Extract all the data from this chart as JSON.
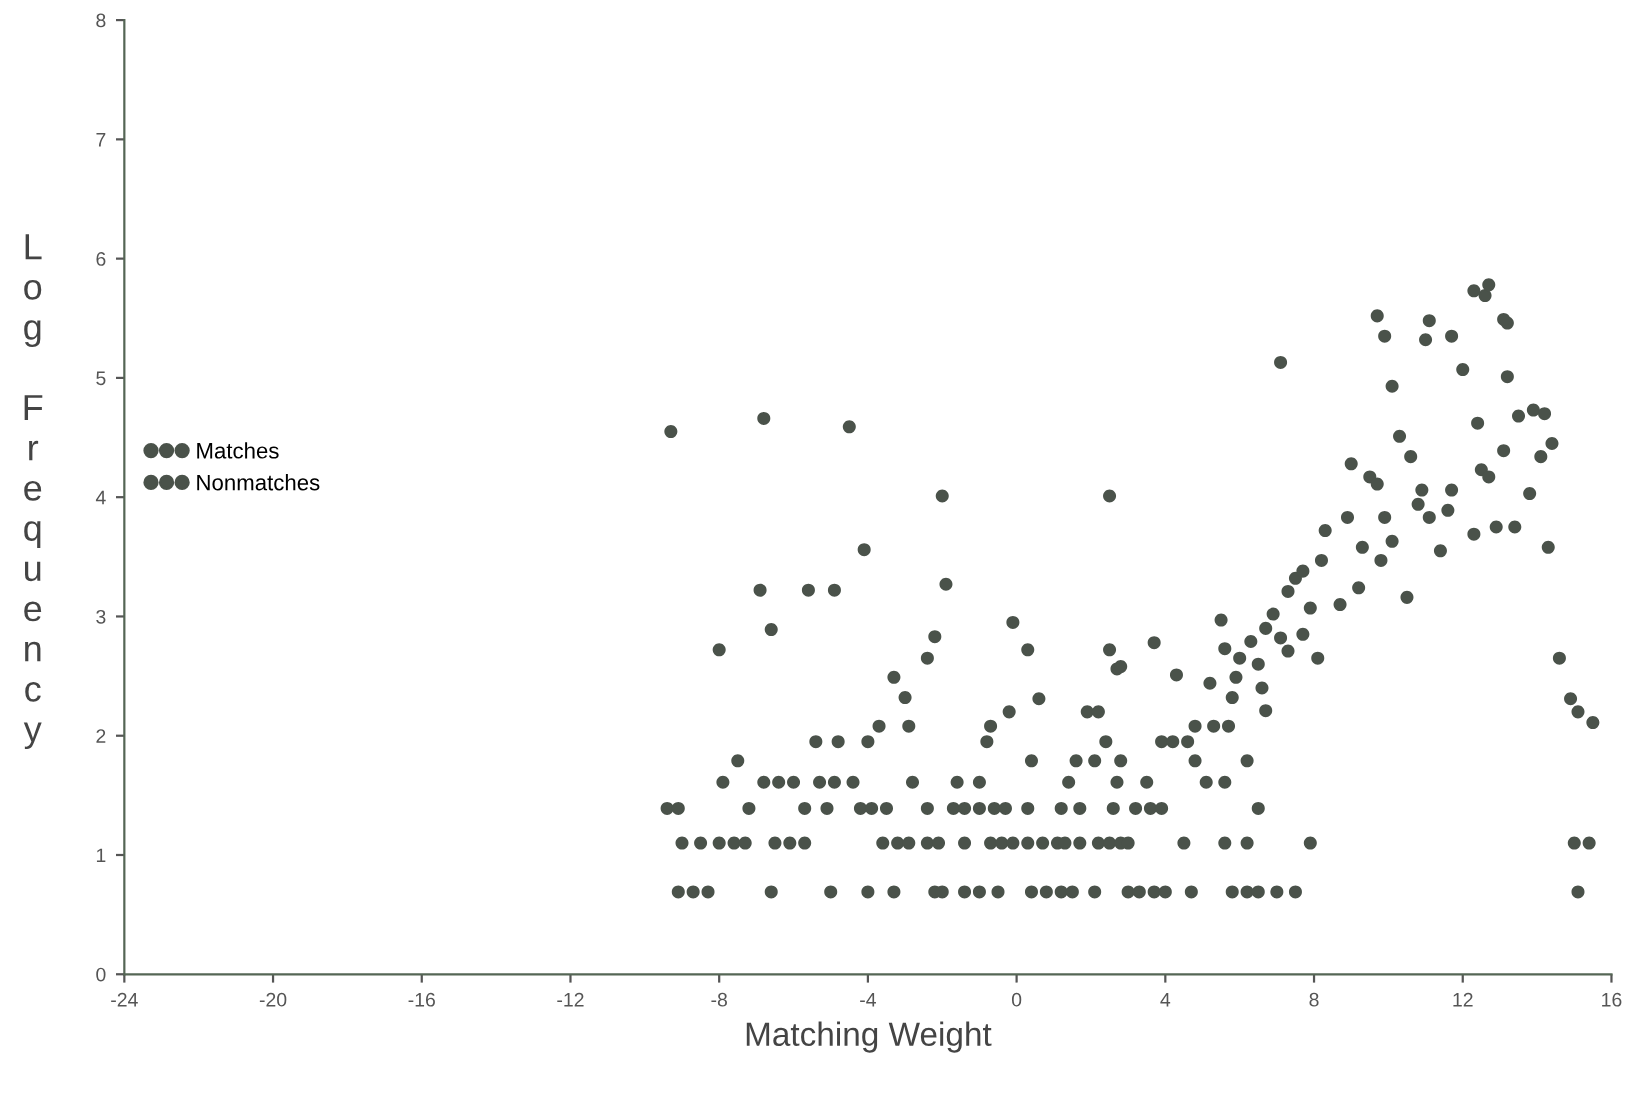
{
  "chart_data": {
    "type": "scatter",
    "xlabel": "Matching Weight",
    "ylabel": "Log Frequency",
    "xlim": [
      -24,
      16
    ],
    "ylim": [
      0,
      8
    ],
    "xticks": [
      -24,
      -20,
      -16,
      -12,
      -8,
      -4,
      0,
      4,
      8,
      12,
      16
    ],
    "yticks": [
      0,
      1,
      2,
      3,
      4,
      5,
      6,
      7,
      8
    ],
    "grid": false,
    "legend": "left",
    "marker": "circle",
    "series": [
      {
        "name": "Matches",
        "color": "#4a524a",
        "x": [
          5.5,
          5.6,
          6.0,
          6.3,
          6.5,
          6.7,
          6.9,
          7.1,
          7.3,
          7.3,
          7.5,
          7.7,
          7.7,
          7.9,
          8.1,
          8.2,
          8.3,
          8.7,
          8.9,
          9.0,
          9.2,
          9.3,
          9.5,
          9.7,
          9.8,
          9.9,
          10.1,
          10.3,
          10.5,
          10.6,
          10.8,
          10.9,
          11.1,
          11.4,
          11.6,
          11.7,
          12.0,
          12.3,
          12.4,
          12.5,
          12.7,
          12.9,
          13.1,
          13.2,
          13.2,
          13.4,
          13.5,
          13.8,
          13.9,
          14.1,
          14.2,
          14.4,
          14.3,
          14.6,
          14.9,
          15.1,
          15.5,
          9.9,
          10.1,
          11.0,
          11.1,
          11.7,
          12.6,
          12.7,
          12.3,
          13.1,
          9.7,
          7.1
        ],
        "values": [
          2.97,
          2.73,
          2.65,
          2.79,
          2.6,
          2.9,
          3.02,
          2.82,
          2.71,
          3.21,
          3.32,
          3.38,
          2.85,
          3.07,
          2.65,
          3.47,
          3.72,
          3.1,
          3.83,
          4.28,
          3.24,
          3.58,
          4.17,
          4.11,
          3.47,
          3.83,
          3.63,
          4.51,
          3.16,
          4.34,
          3.94,
          4.06,
          3.83,
          3.55,
          3.89,
          4.06,
          5.07,
          3.69,
          4.62,
          4.23,
          4.17,
          3.75,
          4.39,
          5.01,
          5.46,
          3.75,
          4.68,
          4.03,
          4.73,
          4.34,
          4.7,
          4.45,
          3.58,
          2.65,
          2.31,
          2.2,
          2.11,
          5.35,
          4.93,
          5.32,
          5.48,
          5.35,
          5.69,
          5.78,
          5.73,
          5.49,
          5.52,
          5.13
        ]
      },
      {
        "name": "Nonmatches",
        "color": "#4a524a",
        "x": [
          -9.1,
          -8.7,
          -8.3,
          -6.6,
          -5.0,
          -4.0,
          -3.3,
          -2.2,
          -2.0,
          -1.4,
          -1.0,
          -0.5,
          0.4,
          0.8,
          1.2,
          1.5,
          2.1,
          3.0,
          3.3,
          3.7,
          4.0,
          4.7,
          5.8,
          6.2,
          6.5,
          7.0,
          7.5,
          15.1,
          -9.0,
          -8.5,
          -8.0,
          -7.6,
          -7.3,
          -6.5,
          -6.1,
          -5.7,
          -3.6,
          -3.2,
          -2.9,
          -2.4,
          -2.1,
          -1.4,
          -0.7,
          -0.4,
          -0.1,
          0.3,
          0.7,
          1.1,
          1.3,
          1.7,
          2.2,
          2.5,
          2.8,
          3.0,
          4.5,
          5.6,
          6.2,
          7.9,
          15.0,
          15.4,
          -9.4,
          -9.1,
          -7.2,
          -5.7,
          -5.1,
          -4.2,
          -3.9,
          -3.5,
          -2.4,
          -1.7,
          -1.4,
          -1.0,
          -0.6,
          -0.3,
          0.3,
          1.2,
          1.7,
          2.6,
          3.2,
          3.6,
          3.9,
          6.5,
          -7.9,
          -6.8,
          -6.4,
          -6.0,
          -5.3,
          -4.9,
          -4.4,
          -2.8,
          -1.6,
          -1.0,
          1.4,
          2.7,
          3.5,
          5.1,
          5.6,
          -7.5,
          0.4,
          1.6,
          2.1,
          2.8,
          4.8,
          6.2,
          -5.4,
          -4.8,
          -4.0,
          -0.8,
          2.4,
          3.9,
          4.2,
          4.6,
          -3.7,
          -2.9,
          -0.7,
          4.8,
          5.3,
          5.7,
          -0.2,
          1.9,
          2.2,
          0.6,
          -3.0,
          -3.3,
          2.7,
          4.3,
          5.2,
          5.8,
          6.7,
          6.6,
          5.9,
          -8.0,
          -6.6,
          -6.9,
          -5.6,
          -4.9,
          -4.1,
          -2.0,
          -1.9,
          -2.2,
          -2.4,
          -0.1,
          0.3,
          2.5,
          2.5,
          2.8,
          3.7,
          -9.3,
          -6.8,
          -4.5
        ],
        "values": [
          0.69,
          0.69,
          0.69,
          0.69,
          0.69,
          0.69,
          0.69,
          0.69,
          0.69,
          0.69,
          0.69,
          0.69,
          0.69,
          0.69,
          0.69,
          0.69,
          0.69,
          0.69,
          0.69,
          0.69,
          0.69,
          0.69,
          0.69,
          0.69,
          0.69,
          0.69,
          0.69,
          0.69,
          1.1,
          1.1,
          1.1,
          1.1,
          1.1,
          1.1,
          1.1,
          1.1,
          1.1,
          1.1,
          1.1,
          1.1,
          1.1,
          1.1,
          1.1,
          1.1,
          1.1,
          1.1,
          1.1,
          1.1,
          1.1,
          1.1,
          1.1,
          1.1,
          1.1,
          1.1,
          1.1,
          1.1,
          1.1,
          1.1,
          1.1,
          1.1,
          1.39,
          1.39,
          1.39,
          1.39,
          1.39,
          1.39,
          1.39,
          1.39,
          1.39,
          1.39,
          1.39,
          1.39,
          1.39,
          1.39,
          1.39,
          1.39,
          1.39,
          1.39,
          1.39,
          1.39,
          1.39,
          1.39,
          1.61,
          1.61,
          1.61,
          1.61,
          1.61,
          1.61,
          1.61,
          1.61,
          1.61,
          1.61,
          1.61,
          1.61,
          1.61,
          1.61,
          1.61,
          1.79,
          1.79,
          1.79,
          1.79,
          1.79,
          1.79,
          1.79,
          1.95,
          1.95,
          1.95,
          1.95,
          1.95,
          1.95,
          1.95,
          1.95,
          2.08,
          2.08,
          2.08,
          2.08,
          2.08,
          2.08,
          2.2,
          2.2,
          2.2,
          2.31,
          2.32,
          2.49,
          2.56,
          2.51,
          2.44,
          2.32,
          2.21,
          2.4,
          2.49,
          2.72,
          2.89,
          3.22,
          3.22,
          3.22,
          3.56,
          4.01,
          3.27,
          2.83,
          2.65,
          2.95,
          2.72,
          4.01,
          2.72,
          2.58,
          2.78,
          4.55,
          4.66,
          4.59
        ]
      }
    ]
  }
}
